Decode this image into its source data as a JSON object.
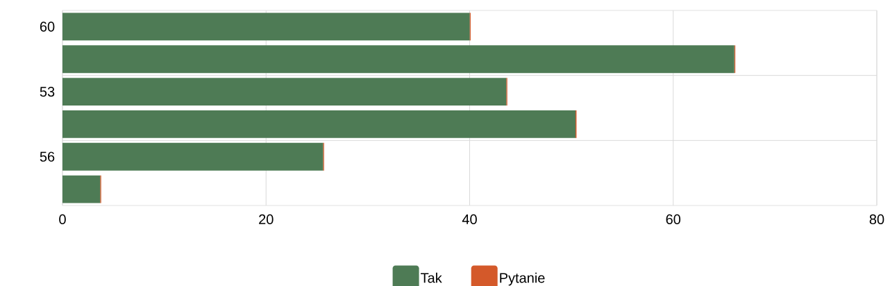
{
  "chart_data": {
    "type": "bar",
    "orientation": "horizontal",
    "stacked": true,
    "categories": [
      "60",
      null,
      "53",
      null,
      "56",
      null
    ],
    "series": [
      {
        "name": "Tak",
        "color": "#4e7b55",
        "values": [
          40.0,
          66.0,
          43.6,
          50.4,
          25.6,
          3.7
        ]
      },
      {
        "name": "Pytanie",
        "color": "#d4592a",
        "values": [
          0.1,
          0.1,
          0.1,
          0.1,
          0.1,
          0.1
        ]
      }
    ],
    "xlim": [
      0,
      80
    ],
    "xticks": [
      0,
      20,
      40,
      60,
      80
    ],
    "grid": "x",
    "legend": "bottom"
  }
}
